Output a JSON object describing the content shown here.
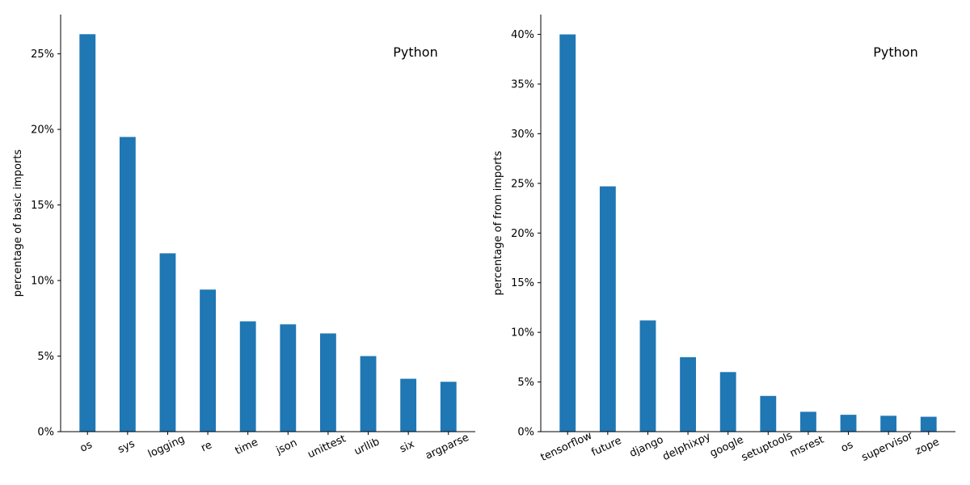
{
  "chart_data": [
    {
      "type": "bar",
      "title": "",
      "annotation": "Python",
      "xlabel": "",
      "ylabel": "percentage of basic imports",
      "categories": [
        "os",
        "sys",
        "logging",
        "re",
        "time",
        "json",
        "unittest",
        "urllib",
        "six",
        "argparse"
      ],
      "values": [
        26.3,
        19.5,
        11.8,
        9.4,
        7.3,
        7.1,
        6.5,
        5.0,
        3.5,
        3.3
      ],
      "ylim": [
        0,
        27.6
      ],
      "yticks": [
        0,
        5,
        10,
        15,
        20,
        25
      ],
      "ytick_labels": [
        "0%",
        "5%",
        "10%",
        "15%",
        "20%",
        "25%"
      ],
      "color": "#1f77b4",
      "grid": false
    },
    {
      "type": "bar",
      "title": "",
      "annotation": "Python",
      "xlabel": "",
      "ylabel": "percentage of from imports",
      "categories": [
        "tensorflow",
        "future",
        "django",
        "delphixpy",
        "google",
        "setuptools",
        "msrest",
        "os",
        "supervisor",
        "zope"
      ],
      "values": [
        40.0,
        24.7,
        11.2,
        7.5,
        6.0,
        3.6,
        2.0,
        1.7,
        1.6,
        1.5
      ],
      "ylim": [
        0,
        42
      ],
      "yticks": [
        0,
        5,
        10,
        15,
        20,
        25,
        30,
        35,
        40
      ],
      "ytick_labels": [
        "0%",
        "5%",
        "10%",
        "15%",
        "20%",
        "25%",
        "30%",
        "35%",
        "40%"
      ],
      "color": "#1f77b4",
      "grid": false
    }
  ]
}
